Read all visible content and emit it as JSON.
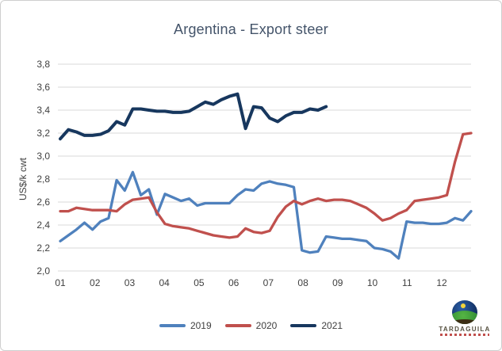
{
  "window": {
    "background": "#ffffff",
    "border_color": "#cfcfcf",
    "gridline_color": "#d9d9d9",
    "text_color": "#404040",
    "title_color": "#44546a"
  },
  "chart_data": {
    "type": "line",
    "title": "Argentina - Export steer",
    "ylabel": "US$/k cwt",
    "ylim": [
      2.0,
      3.8
    ],
    "y_ticks": [
      "2,0",
      "2,2",
      "2,4",
      "2,6",
      "2,8",
      "3,0",
      "3,2",
      "3,4",
      "3,6",
      "3,8"
    ],
    "x_tick_labels": [
      "01",
      "02",
      "03",
      "04",
      "05",
      "06",
      "07",
      "08",
      "09",
      "10",
      "11",
      "12"
    ],
    "x_unit": "month (weekly data points)",
    "grid": true,
    "legend_position": "bottom",
    "series": [
      {
        "name": "2019",
        "color": "#4f81bd",
        "values": [
          2.26,
          2.31,
          2.36,
          2.42,
          2.36,
          2.43,
          2.46,
          2.79,
          2.7,
          2.86,
          2.66,
          2.71,
          2.49,
          2.67,
          2.64,
          2.61,
          2.63,
          2.57,
          2.59,
          2.59,
          2.59,
          2.59,
          2.66,
          2.71,
          2.7,
          2.76,
          2.78,
          2.76,
          2.75,
          2.73,
          2.18,
          2.16,
          2.17,
          2.3,
          2.29,
          2.28,
          2.28,
          2.27,
          2.26,
          2.2,
          2.19,
          2.17,
          2.11,
          2.43,
          2.42,
          2.42,
          2.41,
          2.41,
          2.42,
          2.46,
          2.44,
          2.52
        ]
      },
      {
        "name": "2020",
        "color": "#c0504d",
        "values": [
          2.52,
          2.52,
          2.55,
          2.54,
          2.53,
          2.53,
          2.53,
          2.52,
          2.58,
          2.62,
          2.63,
          2.64,
          2.51,
          2.41,
          2.39,
          2.38,
          2.37,
          2.35,
          2.33,
          2.31,
          2.3,
          2.29,
          2.3,
          2.37,
          2.34,
          2.33,
          2.35,
          2.47,
          2.56,
          2.61,
          2.58,
          2.61,
          2.63,
          2.61,
          2.62,
          2.62,
          2.61,
          2.58,
          2.55,
          2.5,
          2.44,
          2.46,
          2.5,
          2.53,
          2.61,
          2.62,
          2.63,
          2.64,
          2.66,
          2.95,
          3.19,
          3.2
        ]
      },
      {
        "name": "2021",
        "color": "#17375e",
        "values": [
          3.15,
          3.23,
          3.21,
          3.18,
          3.18,
          3.19,
          3.22,
          3.3,
          3.27,
          3.41,
          3.41,
          3.4,
          3.39,
          3.39,
          3.38,
          3.38,
          3.39,
          3.43,
          3.47,
          3.45,
          3.49,
          3.52,
          3.54,
          3.24,
          3.43,
          3.42,
          3.33,
          3.3,
          3.35,
          3.38,
          3.38,
          3.41,
          3.4,
          3.43
        ]
      }
    ]
  },
  "logo": {
    "text": "TARDAGUILA",
    "globe_sky_color": "#16386e",
    "globe_hill_color": "#2f8a33",
    "globe_sun_color": "#f2d33c",
    "subtext_color": "#c0504d"
  }
}
